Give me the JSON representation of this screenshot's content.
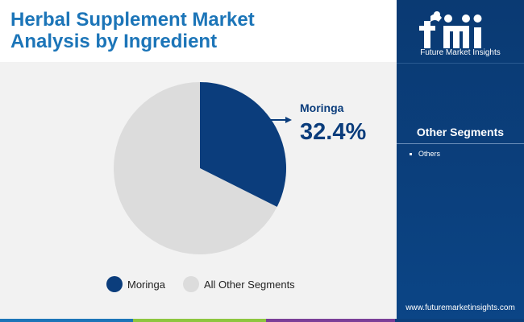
{
  "header": {
    "title_line1": "Herbal Supplement Market",
    "title_line2": "Analysis by Ingredient"
  },
  "brand": {
    "logo_text": "fmi",
    "name": "Future Market Insights",
    "website": "www.futuremarketinsights.com"
  },
  "side_panel": {
    "title": "Other Segments",
    "items": [
      "Others"
    ]
  },
  "colors": {
    "moringa": "#0b3d7c",
    "other": "#dcdcdc",
    "title": "#1c75b8",
    "panel": "#0b3f7c",
    "footer": [
      "#1c75b8",
      "#8dc63f",
      "#7b3f98",
      "#0b3f7c"
    ]
  },
  "chart_data": {
    "type": "pie",
    "title": "",
    "slices": [
      {
        "label": "Moringa",
        "value": 32.4,
        "value_label": "32.4%"
      },
      {
        "label": "All Other Segments",
        "value": 67.6
      }
    ],
    "callout": {
      "label": "Moringa",
      "value_label": "32.4%"
    },
    "legend": [
      "Moringa",
      "All Other Segments"
    ],
    "legend_position": "bottom"
  }
}
